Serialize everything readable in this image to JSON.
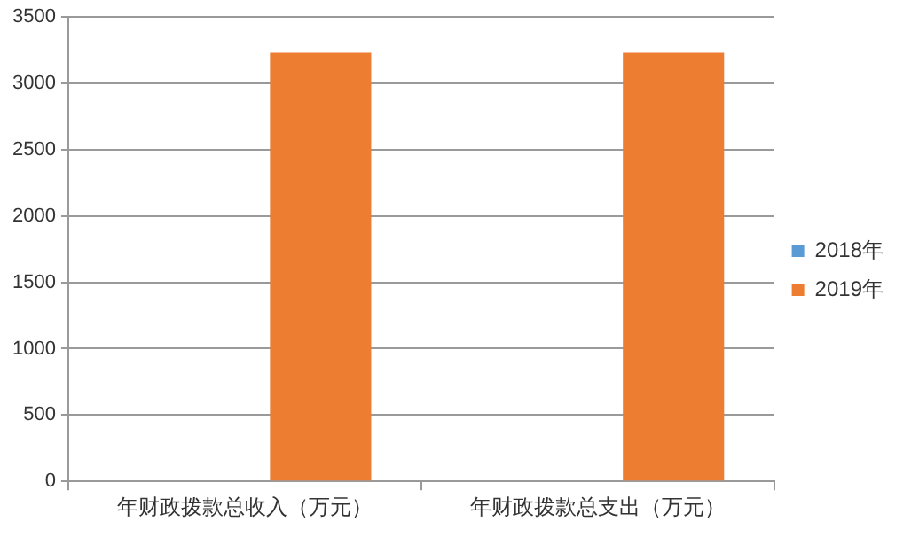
{
  "chart_data": {
    "type": "bar",
    "categories": [
      "年财政拨款总收入（万元）",
      "年财政拨款总支出（万元）"
    ],
    "series": [
      {
        "name": "2018年",
        "color": "#5b9bd5",
        "values": [
          0,
          0
        ]
      },
      {
        "name": "2019年",
        "color": "#ed7d31",
        "values": [
          3230,
          3230
        ]
      }
    ],
    "ylim": [
      0,
      3500
    ],
    "yticks": [
      0,
      500,
      1000,
      1500,
      2000,
      2500,
      3000,
      3500
    ],
    "grid": "y",
    "legend": "right"
  }
}
